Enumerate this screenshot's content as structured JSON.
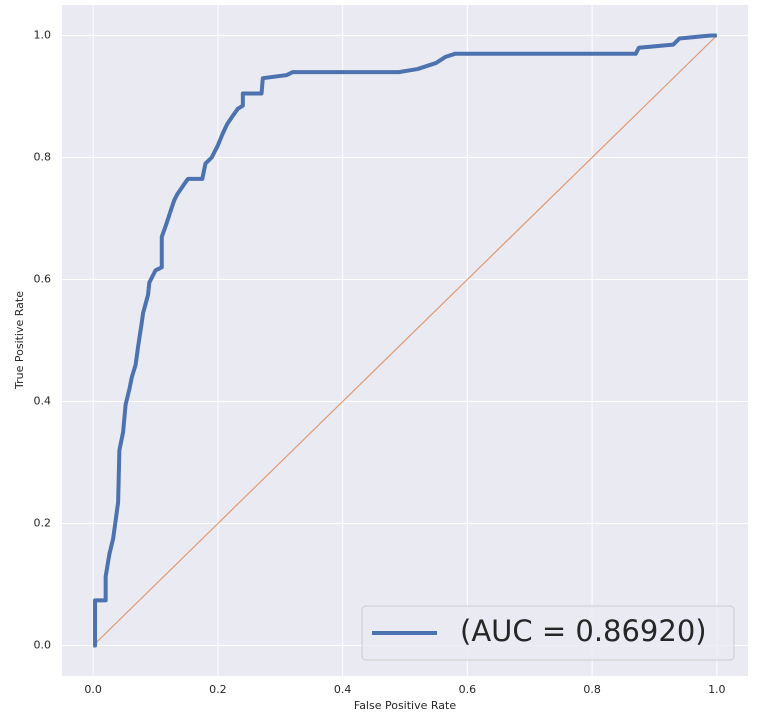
{
  "chart_data": {
    "type": "line",
    "x_label": "False Positive Rate",
    "y_label": "True Positive Rate",
    "xlim": [
      -0.05,
      1.05
    ],
    "ylim": [
      -0.05,
      1.05
    ],
    "xticks": [
      {
        "value": 0,
        "label": "0.0"
      },
      0.2,
      0.4,
      0.6,
      0.8,
      {
        "value": 1,
        "label": "1.0"
      }
    ],
    "yticks": [
      {
        "value": 0,
        "label": "0.0"
      },
      0.2,
      0.4,
      0.6,
      0.8,
      {
        "value": 1,
        "label": "1.0"
      }
    ],
    "grid": true,
    "legend_position": "lower right",
    "series": [
      {
        "name": "(AUC = 0.86920)",
        "color": "#4c72b0",
        "x": [
          0,
          0.003,
          0.003,
          0.02,
          0.02,
          0.026,
          0.032,
          0.04,
          0.042,
          0.048,
          0.052,
          0.058,
          0.062,
          0.068,
          0.072,
          0.078,
          0.08,
          0.088,
          0.09,
          0.1,
          0.11,
          0.11,
          0.117,
          0.125,
          0.13,
          0.135,
          0.145,
          0.152,
          0.175,
          0.18,
          0.19,
          0.2,
          0.208,
          0.215,
          0.225,
          0.232,
          0.24,
          0.24,
          0.27,
          0.272,
          0.31,
          0.32,
          0.49,
          0.52,
          0.55,
          0.565,
          0.58,
          0.87,
          0.875,
          0.93,
          0.94,
          0.99,
          1.0
        ],
        "values": [
          0,
          0,
          0.074,
          0.074,
          0.113,
          0.15,
          0.175,
          0.235,
          0.32,
          0.35,
          0.395,
          0.42,
          0.44,
          0.46,
          0.49,
          0.53,
          0.545,
          0.575,
          0.595,
          0.615,
          0.62,
          0.67,
          0.69,
          0.715,
          0.73,
          0.74,
          0.755,
          0.765,
          0.765,
          0.79,
          0.8,
          0.82,
          0.84,
          0.855,
          0.87,
          0.88,
          0.885,
          0.905,
          0.905,
          0.93,
          0.935,
          0.94,
          0.94,
          0.945,
          0.955,
          0.965,
          0.97,
          0.97,
          0.98,
          0.985,
          0.995,
          1.0,
          1.0
        ]
      },
      {
        "color": "#dd8452",
        "x": [
          0,
          1
        ],
        "values": [
          0,
          1
        ]
      }
    ]
  }
}
